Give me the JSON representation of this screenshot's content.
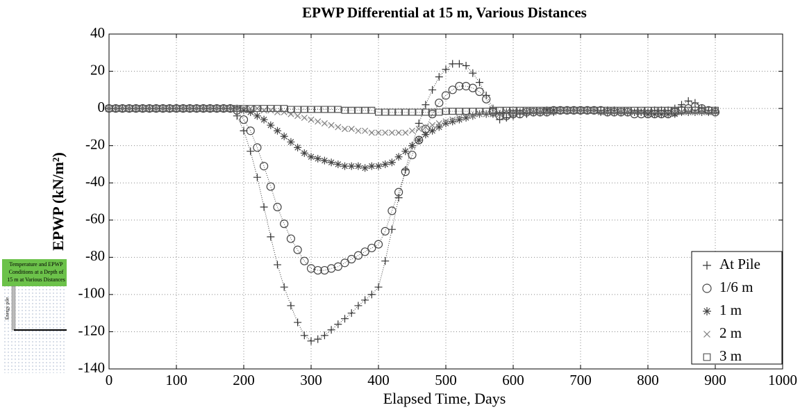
{
  "chart_data": {
    "type": "scatter",
    "title": "EPWP Differential at 15 m, Various Distances",
    "x_label": "Elapsed Time, Days",
    "y_label": "EPWP (kN/m²)",
    "xlim": [
      0,
      1000
    ],
    "xticks": [
      0,
      100,
      200,
      300,
      400,
      500,
      600,
      700,
      800,
      900,
      1000
    ],
    "ylim": [
      -140,
      40
    ],
    "yticks": [
      -140,
      -120,
      -100,
      -80,
      -60,
      -40,
      -20,
      0,
      20,
      40
    ],
    "grid": true,
    "legend": "lower right",
    "x": [
      0,
      10,
      20,
      30,
      40,
      50,
      60,
      70,
      80,
      90,
      100,
      110,
      120,
      130,
      140,
      150,
      160,
      170,
      180,
      190,
      200,
      210,
      220,
      230,
      240,
      250,
      260,
      270,
      280,
      290,
      300,
      310,
      320,
      330,
      340,
      350,
      360,
      370,
      380,
      390,
      400,
      410,
      420,
      430,
      440,
      450,
      460,
      470,
      480,
      490,
      500,
      510,
      520,
      530,
      540,
      550,
      560,
      570,
      580,
      590,
      600,
      610,
      620,
      630,
      640,
      650,
      660,
      670,
      680,
      690,
      700,
      710,
      720,
      730,
      740,
      750,
      760,
      770,
      780,
      790,
      800,
      810,
      820,
      830,
      840,
      850,
      860,
      870,
      880,
      890,
      900
    ],
    "series": [
      {
        "name": "At Pile",
        "marker": "plus",
        "color": "#333333",
        "values": [
          0,
          0,
          0,
          0,
          0,
          0,
          0,
          0,
          0,
          0,
          0,
          0,
          0,
          0,
          0,
          0,
          0,
          0,
          0,
          -4,
          -12,
          -23,
          -37,
          -53,
          -69,
          -84,
          -96,
          -106,
          -115,
          -122,
          -125,
          -124,
          -122,
          -119,
          -116,
          -113,
          -110,
          -106,
          -103,
          -100,
          -96,
          -82,
          -65,
          -48,
          -33,
          -20,
          -8,
          2,
          10,
          17,
          21,
          24,
          24,
          23,
          19,
          14,
          7,
          0,
          -6,
          -5,
          -4,
          -3,
          -3,
          -2,
          -2,
          -2,
          -2,
          -1,
          -1,
          -1,
          -1,
          -1,
          -1,
          -1,
          -1,
          -1,
          -2,
          -2,
          -2,
          -2,
          -2,
          -1,
          -1,
          -1,
          0,
          2,
          4,
          3,
          0,
          -1,
          -1
        ]
      },
      {
        "name": "1/6 m",
        "marker": "circle",
        "color": "#444444",
        "values": [
          0,
          0,
          0,
          0,
          0,
          0,
          0,
          0,
          0,
          0,
          0,
          0,
          0,
          0,
          0,
          0,
          0,
          0,
          0,
          -1,
          -6,
          -12,
          -21,
          -31,
          -42,
          -53,
          -62,
          -70,
          -76,
          -82,
          -86,
          -87,
          -87,
          -86,
          -85,
          -83,
          -81,
          -79,
          -77,
          -75,
          -73,
          -66,
          -55,
          -45,
          -34,
          -25,
          -17,
          -11,
          -3,
          3,
          7,
          10,
          12,
          12,
          11,
          9,
          5,
          -2,
          -4,
          -4,
          -3,
          -3,
          -2,
          -2,
          -2,
          -2,
          -1,
          -1,
          -1,
          -1,
          -1,
          -1,
          -1,
          -1,
          -2,
          -2,
          -2,
          -2,
          -3,
          -3,
          -3,
          -3,
          -3,
          -3,
          -2,
          -1,
          0,
          1,
          0,
          -1,
          -2
        ]
      },
      {
        "name": "1 m",
        "marker": "asterisk",
        "color": "#444444",
        "values": [
          0,
          0,
          0,
          0,
          0,
          0,
          0,
          0,
          0,
          0,
          0,
          0,
          0,
          0,
          0,
          0,
          0,
          0,
          0,
          0,
          -1,
          -2,
          -4,
          -6,
          -9,
          -12,
          -15,
          -18,
          -21,
          -24,
          -26,
          -27,
          -28,
          -29,
          -30,
          -31,
          -31,
          -31,
          -32,
          -31,
          -31,
          -30,
          -29,
          -26,
          -23,
          -20,
          -17,
          -14,
          -12,
          -10,
          -8,
          -7,
          -6,
          -5,
          -4,
          -3,
          -3,
          -3,
          -3,
          -2,
          -2,
          -2,
          -2,
          -2,
          -2,
          -1,
          -1,
          -1,
          -1,
          -1,
          -1,
          -1,
          -1,
          -2,
          -2,
          -2,
          -2,
          -2,
          -2,
          -2,
          -3,
          -3,
          -3,
          -3,
          -3,
          -2,
          -2,
          -2,
          -2,
          -2,
          -2
        ]
      },
      {
        "name": "2 m",
        "marker": "cross",
        "color": "#808080",
        "values": [
          0,
          0,
          0,
          0,
          0,
          0,
          0,
          0,
          0,
          0,
          0,
          0,
          0,
          0,
          0,
          0,
          0,
          0,
          0,
          0,
          0,
          0,
          0,
          -1,
          -1,
          -2,
          -2,
          -3,
          -4,
          -5,
          -6,
          -7,
          -8,
          -9,
          -10,
          -11,
          -11,
          -12,
          -12,
          -13,
          -13,
          -13,
          -13,
          -13,
          -13,
          -12,
          -11,
          -10,
          -9,
          -8,
          -7,
          -6,
          -5,
          -4,
          -4,
          -3,
          -3,
          -3,
          -3,
          -2,
          -2,
          -2,
          -2,
          -2,
          -2,
          -2,
          -2,
          -1,
          -1,
          -1,
          -1,
          -1,
          -1,
          -2,
          -2,
          -2,
          -2,
          -2,
          -2,
          -2,
          -2,
          -2,
          -2,
          -2,
          -2,
          -2,
          -2,
          -2,
          -2,
          -2,
          -2
        ]
      },
      {
        "name": "3 m",
        "marker": "square",
        "color": "#555555",
        "values": [
          0,
          0,
          0,
          0,
          0,
          0,
          0,
          0,
          0,
          0,
          0,
          0,
          0,
          0,
          0,
          0,
          0,
          0,
          0,
          0,
          0,
          0,
          0,
          0,
          0,
          0,
          0,
          -0.5,
          -0.5,
          -0.5,
          -0.5,
          -0.5,
          -0.5,
          -0.5,
          -0.5,
          -1,
          -1,
          -1,
          -1,
          -1,
          -2,
          -2,
          -2,
          -2,
          -2,
          -2,
          -2,
          -2,
          -2,
          -2,
          -1.5,
          -1.5,
          -1.5,
          -1.5,
          -1.5,
          -1.5,
          -1.5,
          -1,
          -1,
          -1,
          -1,
          -1,
          -1,
          -1,
          -1,
          -1,
          -1,
          -1,
          -1,
          -1,
          -1,
          -1,
          -1,
          -1,
          -1,
          -1,
          -1,
          -1,
          -1,
          -1,
          -1,
          -1,
          -1,
          -1,
          -1,
          -1,
          -1,
          -1,
          -1,
          -1,
          -1
        ]
      }
    ]
  },
  "inset": {
    "caption": [
      "Temperature and EPWP",
      "Conditions at a Depth of",
      "15 m at Various Distances"
    ],
    "pile_label": "Energy pile"
  }
}
